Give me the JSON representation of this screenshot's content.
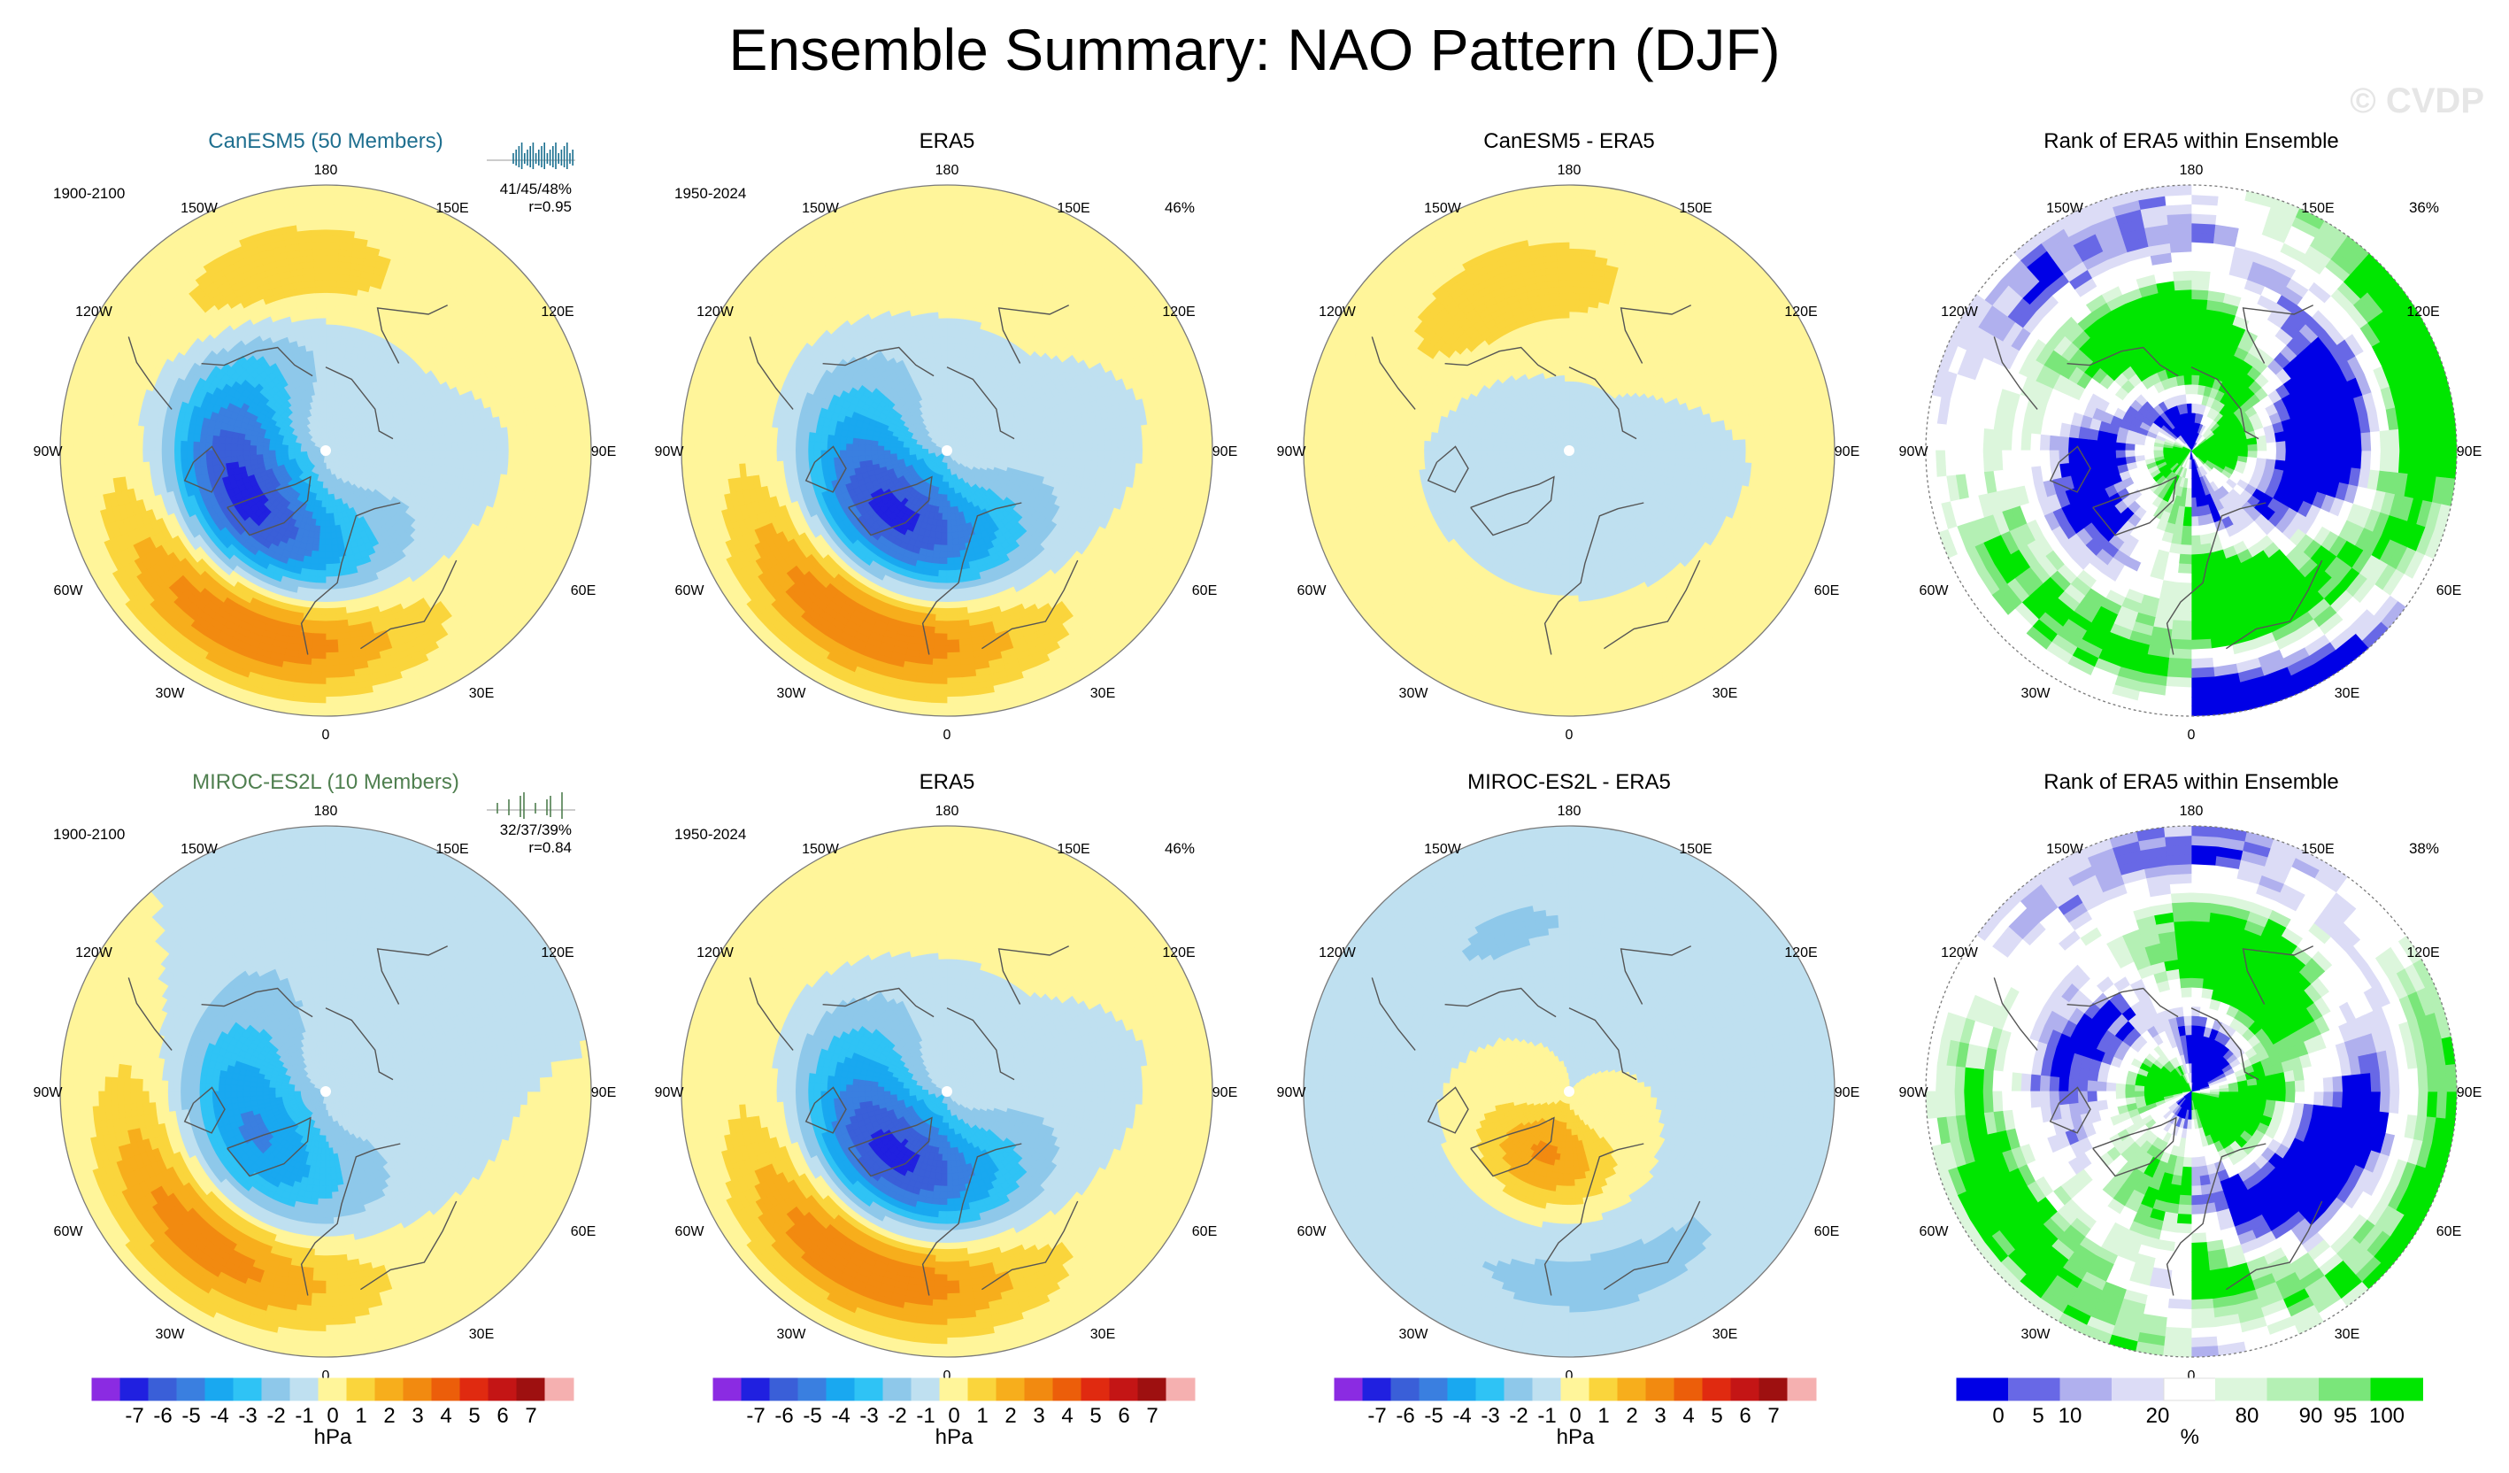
{
  "title": "Ensemble Summary: NAO Pattern (DJF)",
  "watermark": "© CVDP",
  "colors": {
    "hpa_levels": [
      "#8b2be2",
      "#2020e0",
      "#3a5fd8",
      "#3a7fe0",
      "#19a8f0",
      "#2fc3f5",
      "#8ec8ea",
      "#bfe0f0",
      "#fff59a",
      "#fad53c",
      "#f7ae1c",
      "#f28a10",
      "#ec5e0a",
      "#e02a10",
      "#c41515",
      "#9e1010",
      "#f5b0b0"
    ],
    "pct_levels": [
      "#0000e6",
      "#6868e6",
      "#b0b0ee",
      "#dcdcf6",
      "#ffffff",
      "#dcf6dc",
      "#b4f0b4",
      "#7ae67a",
      "#00e600"
    ],
    "land_line": "#555555"
  },
  "chart_data": [
    {
      "type": "heatmap",
      "id": "r1c1",
      "title": "CanESM5 (50 Members)",
      "title_color": "#1f6f8f",
      "period": "1900-2100",
      "stats": "41/45/48%",
      "corr": "r=0.95",
      "inset": "member pattern-correlation strip",
      "field": "model_r1",
      "pattern": {
        "low": {
          "lon": 300,
          "lat": 65,
          "amp": -6.5
        },
        "high": {
          "lon": 335,
          "lat": 40,
          "amp": 4.6
        },
        "pac": {
          "lon": 195,
          "lat": 42,
          "amp": 2.0
        }
      }
    },
    {
      "type": "heatmap",
      "id": "r1c2",
      "title": "ERA5",
      "period": "1950-2024",
      "pct": "46%",
      "pattern": {
        "low": {
          "lon": 320,
          "lat": 68,
          "amp": -6.4
        },
        "high": {
          "lon": 335,
          "lat": 40,
          "amp": 4.5
        },
        "pac": {
          "lon": 195,
          "lat": 42,
          "amp": 0.6
        }
      }
    },
    {
      "type": "heatmap",
      "id": "r1c3",
      "title": "CanESM5 - ERA5",
      "pattern": {
        "low": {
          "lon": 320,
          "lat": 70,
          "amp": -0.8
        },
        "high": {
          "lon": 330,
          "lat": 38,
          "amp": 0.7
        },
        "pac": {
          "lon": 200,
          "lat": 45,
          "amp": 1.9
        }
      }
    },
    {
      "type": "heatmap",
      "id": "r1c4",
      "title": "Rank of ERA5 within Ensemble",
      "pct": "36%"
    },
    {
      "type": "heatmap",
      "id": "r2c1",
      "title": "MIROC-ES2L (10 Members)",
      "title_color": "#4f7f4f",
      "period": "1900-2100",
      "stats": "32/37/39%",
      "corr": "r=0.84",
      "inset": "member pattern-correlation strip",
      "pattern": {
        "low": {
          "lon": 300,
          "lat": 68,
          "amp": -4.2
        },
        "high": {
          "lon": 320,
          "lat": 40,
          "amp": 3.8
        },
        "pac": {
          "lon": 190,
          "lat": 45,
          "amp": -0.5
        }
      }
    },
    {
      "type": "heatmap",
      "id": "r2c2",
      "title": "ERA5",
      "period": "1950-2024",
      "pct": "46%",
      "pattern": {
        "low": {
          "lon": 320,
          "lat": 68,
          "amp": -6.4
        },
        "high": {
          "lon": 335,
          "lat": 40,
          "amp": 4.5
        },
        "pac": {
          "lon": 195,
          "lat": 42,
          "amp": 0.6
        }
      }
    },
    {
      "type": "heatmap",
      "id": "r2c3",
      "title": "MIROC-ES2L - ERA5",
      "pattern": {
        "low": {
          "lon": 10,
          "lat": 40,
          "amp": -1.2
        },
        "high": {
          "lon": 340,
          "lat": 72,
          "amp": 3.2
        },
        "pac": {
          "lon": 200,
          "lat": 45,
          "amp": -1.1
        }
      }
    },
    {
      "type": "heatmap",
      "id": "r2c4",
      "title": "Rank of ERA5 within Ensemble",
      "pct": "38%"
    }
  ],
  "lon_labels": {
    "top": "180",
    "bottom": "0",
    "l150": "150W",
    "r150": "150E",
    "l120": "120W",
    "r120": "120E",
    "l90": "90W",
    "r90": "90E",
    "l60": "60W",
    "r60": "60E",
    "l30": "30W",
    "r30": "30E"
  },
  "colorbar_hpa": {
    "labels": [
      "-7",
      "-6",
      "-5",
      "-4",
      "-3",
      "-2",
      "-1",
      "0",
      "1",
      "2",
      "3",
      "4",
      "5",
      "6",
      "7"
    ],
    "unit": "hPa"
  },
  "colorbar_pct": {
    "labels": [
      "0",
      "5",
      "10",
      "20",
      "80",
      "90",
      "95",
      "100"
    ],
    "unit": "%"
  }
}
